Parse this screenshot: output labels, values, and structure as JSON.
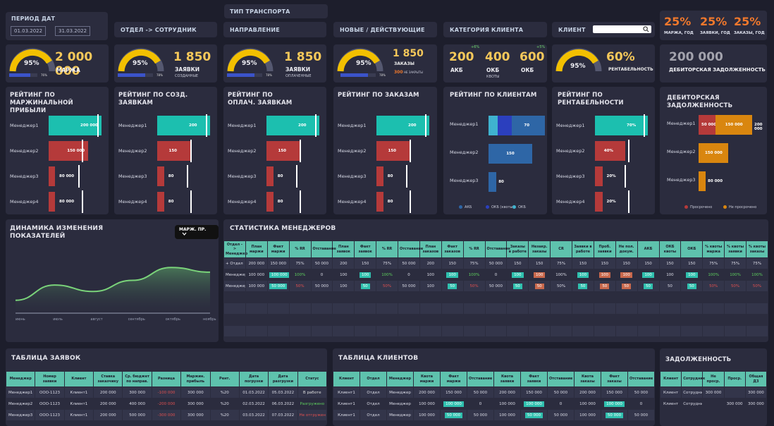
{
  "filters": {
    "period_title": "ПЕРИОД ДАТ",
    "date_from": "01.03.2022",
    "date_to": "31.03.2022",
    "transport": "ТИП ТРАНСПОРТА",
    "dept_emp": "ОТДЕЛ -> СОТРУДНИК",
    "direction": "НАПРАВЛЕНИЕ",
    "new_active": "НОВЫЕ / ДЕЙСТВУЮЩИЕ",
    "client_category": "КАТЕГОРИЯ КЛИЕНТА",
    "client": "КЛИЕНТ",
    "client_search_placeholder": ""
  },
  "yearly": [
    {
      "value": "25%",
      "label": "МАРЖА, ГОД"
    },
    {
      "value": "25%",
      "label": "ЗАЯВКИ, ГОД"
    },
    {
      "value": "25%",
      "label": "ЗАКАЗЫ, ГОД"
    }
  ],
  "kpis": {
    "margin": {
      "gauge": "95%",
      "bar_pct": "76%",
      "value": "2 000 000",
      "label": "МАРЖА"
    },
    "created": {
      "gauge": "95%",
      "bar_pct": "78%",
      "value": "1 850",
      "label": "ЗАЯВКИ",
      "sub": "СОЗДАННЫЕ"
    },
    "paid": {
      "gauge": "95%",
      "bar_pct": "78%",
      "value": "1 850",
      "label": "ЗАЯВКИ",
      "sub": "ОПЛАЧЕННЫЕ"
    },
    "orders": {
      "gauge": "95%",
      "bar_pct": "78%",
      "value": "1 850",
      "label": "ЗАКАЗЫ",
      "closed_value": "300",
      "closed_label": "НЕ ЗАКРЫТЫ"
    },
    "clients": [
      {
        "value": "200",
        "label": "АКБ",
        "delta": "+6%"
      },
      {
        "value": "400",
        "label": "ОКБ",
        "sub": "КВОТЫ"
      },
      {
        "value": "600",
        "label": "ОКБ",
        "delta": "+5%"
      }
    ],
    "profit": {
      "gauge": "95%",
      "value": "60%",
      "label": "РЕНТАБЕЛЬНОСТЬ"
    },
    "debt": {
      "value": "200 000",
      "label": "ДЕБИТОРСКАЯ ЗАДОЛЖЕННОСТЬ"
    }
  },
  "ratings": {
    "margin": {
      "title": "РЕЙТИНГ ПО МАРЖИНАЛЬНОЙ ПРИБЫЛИ",
      "rows": [
        {
          "name": "Менеджер1",
          "value": "200 000",
          "frac": 1.0,
          "color": "#1cbfaf"
        },
        {
          "name": "Менеджер2",
          "value": "150 000",
          "frac": 0.75,
          "color": "#b53a3a"
        },
        {
          "name": "Менеджер3",
          "value": "80 000",
          "frac": 0.12,
          "color": "#b53a3a"
        },
        {
          "name": "Менеджер4",
          "value": "80 000",
          "frac": 0.12,
          "color": "#b53a3a"
        }
      ]
    },
    "created": {
      "title": "РЕЙТИНГ ПО СОЗД. ЗАЯВКАМ",
      "rows": [
        {
          "name": "Менеджер1",
          "value": "200",
          "frac": 1.0,
          "color": "#1cbfaf"
        },
        {
          "name": "Менеджер2",
          "value": "150",
          "frac": 0.62,
          "color": "#b53a3a"
        },
        {
          "name": "Менеджер3",
          "value": "80",
          "frac": 0.13,
          "color": "#b53a3a"
        },
        {
          "name": "Менеджер4",
          "value": "80",
          "frac": 0.13,
          "color": "#b53a3a"
        }
      ]
    },
    "paid": {
      "title": "РЕЙТИНГ ПО ОПЛАЧ. ЗАЯВКАМ",
      "rows": [
        {
          "name": "Менеджер1",
          "value": "200",
          "frac": 1.0,
          "color": "#1cbfaf"
        },
        {
          "name": "Менеджер2",
          "value": "150",
          "frac": 0.62,
          "color": "#b53a3a"
        },
        {
          "name": "Менеджер3",
          "value": "80",
          "frac": 0.13,
          "color": "#b53a3a"
        },
        {
          "name": "Менеджер4",
          "value": "80",
          "frac": 0.13,
          "color": "#b53a3a"
        }
      ]
    },
    "orders": {
      "title": "РЕЙТИНГ ПО ЗАКАЗАМ",
      "rows": [
        {
          "name": "Менеджер1",
          "value": "200",
          "frac": 1.0,
          "color": "#1cbfaf"
        },
        {
          "name": "Менеджер2",
          "value": "150",
          "frac": 0.62,
          "color": "#b53a3a"
        },
        {
          "name": "Менеджер3",
          "value": "80",
          "frac": 0.13,
          "color": "#b53a3a"
        },
        {
          "name": "Менеджер4",
          "value": "80",
          "frac": 0.13,
          "color": "#b53a3a"
        }
      ]
    },
    "profit": {
      "title": "РЕЙТИНГ ПО РЕНТАБЕЛЬНОСТИ",
      "rows": [
        {
          "name": "Менеджер1",
          "value": "70%",
          "frac": 1.0,
          "color": "#1cbfaf"
        },
        {
          "name": "Менеджер2",
          "value": "40%",
          "frac": 0.57,
          "color": "#b53a3a"
        },
        {
          "name": "Менеджер3",
          "value": "20%",
          "frac": 0.14,
          "color": "#b53a3a"
        },
        {
          "name": "Менеджер4",
          "value": "20%",
          "frac": 0.14,
          "color": "#b53a3a"
        }
      ]
    }
  },
  "client_rating": {
    "title": "РЕЙТИНГ ПО КЛИЕНТАМ",
    "rows": [
      {
        "name": "Менеджер1",
        "segments": [
          {
            "value": "",
            "frac": 0.16,
            "color": "#3fb3cf"
          },
          {
            "value": "50",
            "frac": 0.25,
            "color": "#2b3fbe"
          },
          {
            "value": "70",
            "frac": 0.59,
            "color": "#2e66a6"
          }
        ]
      },
      {
        "name": "Менеджер2",
        "segments": [
          {
            "value": "150",
            "frac": 0.78,
            "color": "#2e66a6"
          }
        ]
      },
      {
        "name": "Менеджер3",
        "segments": [
          {
            "value": "80",
            "frac": 0.14,
            "color": "#2e66a6"
          }
        ]
      }
    ],
    "legend": [
      {
        "name": "АКБ",
        "color": "#2e66a6"
      },
      {
        "name": "ОКБ (квоты)",
        "color": "#2b3fbe"
      },
      {
        "name": "ОКБ",
        "color": "#3fb3cf"
      }
    ]
  },
  "debt_rating": {
    "title": "ДЕБИТОРСКАЯ ЗАДОЛЖЕННОСТЬ",
    "rows": [
      {
        "name": "Менеджер1",
        "overdue": "50 000",
        "ok": "150 000",
        "total": "200 000",
        "overdue_frac": 0.25,
        "ok_frac": 0.75
      },
      {
        "name": "Менеджер2",
        "overdue": "",
        "ok": "150 000",
        "total": "",
        "overdue_frac": 0,
        "ok_frac": 0.6
      },
      {
        "name": "Менеджер3",
        "overdue": "",
        "ok": "80 000",
        "total": "",
        "overdue_frac": 0,
        "ok_frac": 0.12
      }
    ],
    "legend": [
      {
        "name": "Просрочено",
        "color": "#b53a3a"
      },
      {
        "name": "Не просрочено",
        "color": "#d9860f"
      }
    ]
  },
  "dynamics": {
    "title": "ДИНАМИКА ИЗМЕНЕНИЯ ПОКАЗАТЕЛЕЙ",
    "dropdown": "МАРЖ. ПР.",
    "line_color": "#7ad37a"
  },
  "chart_data": {
    "type": "area",
    "title": "ДИНАМИКА ИЗМЕНЕНИЯ ПОКАЗАТЕЛЕЙ",
    "categories": [
      "июнь",
      "июль",
      "август",
      "сентябрь",
      "октябрь",
      "ноябрь"
    ],
    "values": [
      22,
      48,
      37,
      56,
      78,
      70
    ],
    "ylim": [
      0,
      100
    ],
    "grid": false
  },
  "managers_stats": {
    "title": "СТАТИСТИКА МЕНЕДЖЕРОВ",
    "headers": [
      "Отдел -> Менеджер",
      "План маржи",
      "Факт маржи",
      "% RR",
      "Отставание",
      "План заявок",
      "Факт заявок",
      "% RR",
      "Отставание",
      "План заказов",
      "Факт заказов",
      "% RR",
      "Отставание",
      "Заказы в работе",
      "Незакр. заказы",
      "CR",
      "Заявки в работе",
      "Проб. заявки",
      "Не пол. докум.",
      "АКБ",
      "ОКБ квоты",
      "ОКБ",
      "% квоты маржа",
      "% квоты заявки",
      "% квоты заказы"
    ],
    "rows": [
      [
        "+ Отдел",
        "200 000",
        "150 000",
        "75%",
        "50 000",
        "200",
        "150",
        "75%",
        "50 000",
        "200",
        "150",
        "75%",
        "50 000",
        "150",
        "150",
        "75%",
        "150",
        "150",
        "150",
        "150",
        "150",
        "150",
        "75%",
        "75%",
        "75%"
      ],
      [
        "Менеджер1",
        "100 000",
        "100 000",
        "100%",
        "0",
        "100",
        "100",
        "100%",
        "0",
        "100",
        "100",
        "100%",
        "0",
        "100",
        "100",
        "100%",
        "100",
        "100",
        "100",
        "100",
        "100",
        "100",
        "100%",
        "100%",
        "100%"
      ],
      [
        "Менеджер2",
        "100 000",
        "50 000",
        "50%",
        "50 000",
        "100",
        "50",
        "50%",
        "50 000",
        "100",
        "50",
        "50%",
        "50 000",
        "50",
        "50",
        "50%",
        "50",
        "50",
        "50",
        "50",
        "50",
        "50",
        "50%",
        "50%",
        "50%"
      ]
    ],
    "empty_rows": 4
  },
  "orders_table": {
    "title": "ТАБЛИЦА ЗАЯВОК",
    "headers": [
      "Менеджер",
      "Номер заявки",
      "Клиент",
      "Ставка заказчику",
      "Ср. бюджет по направ.",
      "Разница",
      "Маржин. прибыль",
      "Рент.",
      "Дата погрузки",
      "Дата разгрузки",
      "Статус"
    ],
    "rows": [
      [
        "Менеджер1",
        "ООО-1123",
        "Клиент1",
        "200 000",
        "300 000",
        "-100 000",
        "300 000",
        "%20",
        "01.03.2022",
        "05.03.2022",
        "В работе"
      ],
      [
        "Менеджер2",
        "ООО-1123",
        "Клиент1",
        "200 000",
        "400 000",
        "-200 000",
        "300 000",
        "%20",
        "02.03.2022",
        "06.03.2022",
        "Разгружено"
      ],
      [
        "Менеджер3",
        "ООО-1123",
        "Клиент1",
        "200 000",
        "500 000",
        "-300 000",
        "300 000",
        "%20",
        "03.03.2022",
        "07.03.2022",
        "Не отгружен"
      ]
    ]
  },
  "clients_table": {
    "title": "ТАБЛИЦА КЛИЕНТОВ",
    "headers": [
      "Клиент",
      "Отдел",
      "Менеджер",
      "Квота маржи",
      "Факт маржи",
      "Отставание",
      "Квота заявки",
      "Факт заявки",
      "Отставание",
      "Квота заказы",
      "Факт заказы",
      "Отставание"
    ],
    "rows": [
      [
        "Клиент1",
        "Отдел",
        "Менеджер",
        "200 000",
        "150 000",
        "50 000",
        "200 000",
        "150 000",
        "50 000",
        "200 000",
        "150 000",
        "50 000"
      ],
      [
        "Клиент1",
        "Отдел",
        "Менеджер",
        "100 000",
        "100 000",
        "0",
        "100 000",
        "100 000",
        "0",
        "100 000",
        "100 000",
        "0"
      ],
      [
        "Клиент1",
        "Отдел",
        "Менеджер",
        "100 000",
        "50 000",
        "50 000",
        "100 000",
        "50 000",
        "50 000",
        "100 000",
        "50 000",
        "50 000"
      ]
    ]
  },
  "debt_table": {
    "title": "ЗАДОЛЖЕННОСТЬ",
    "headers": [
      "Клиент",
      "Сотрудник",
      "Не проср.",
      "Проср.",
      "Общая ДЗ"
    ],
    "rows": [
      [
        "Клиент",
        "Сотрудник1",
        "300 000",
        "",
        "300 000"
      ],
      [
        "Клиент",
        "Сотрудник2",
        "",
        "300 000",
        "300 000"
      ]
    ]
  }
}
